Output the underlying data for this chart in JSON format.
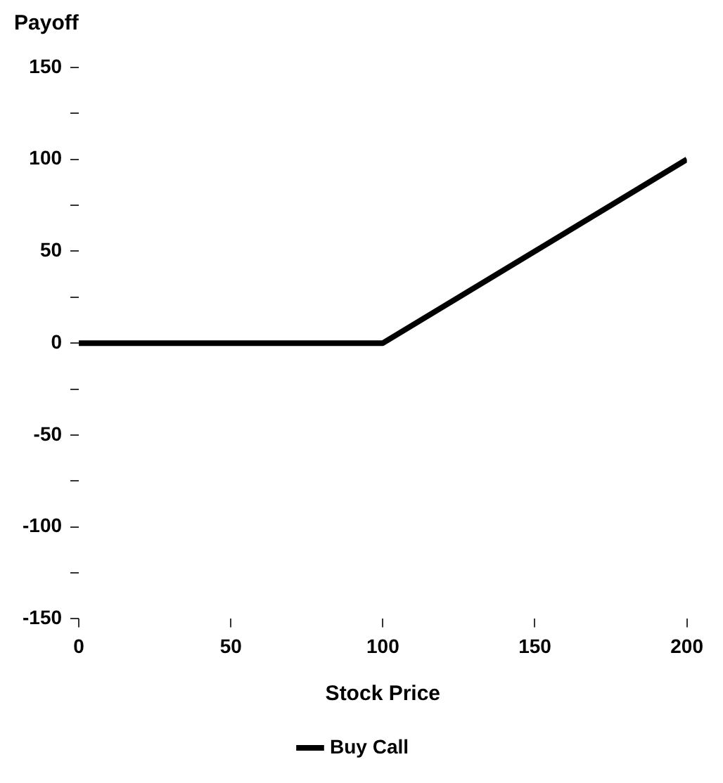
{
  "chart_data": {
    "type": "line",
    "ylabel": "Payoff",
    "xlabel": "Stock Price",
    "series": [
      {
        "name": "Buy Call",
        "color": "#000000",
        "x": [
          0,
          100,
          200
        ],
        "values": [
          0,
          0,
          100
        ]
      }
    ],
    "xlim": [
      0,
      200
    ],
    "xticks": [
      0,
      50,
      100,
      150,
      200
    ],
    "ylim": [
      -150,
      150
    ],
    "yticks": [
      -150,
      {
        "value": -125,
        "label": null
      },
      -100,
      {
        "value": -75,
        "label": null
      },
      -50,
      {
        "value": -25,
        "label": null
      },
      0,
      {
        "value": 25,
        "label": null
      },
      50,
      {
        "value": 75,
        "label": null
      },
      100,
      {
        "value": 125,
        "label": null
      },
      150
    ],
    "grid": false,
    "legend": "bottom",
    "marker": "none",
    "line_style": "solid"
  }
}
